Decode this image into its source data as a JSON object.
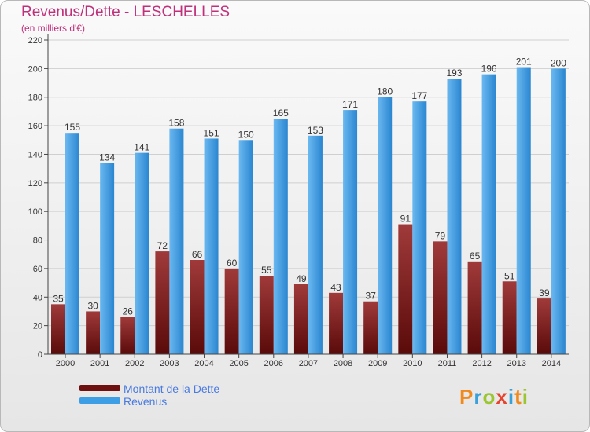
{
  "title": "Revenus/Dette - LESCHELLES",
  "subtitle": "(en milliers d'€)",
  "chart_data": {
    "type": "bar",
    "title": "Revenus/Dette - LESCHELLES",
    "subtitle": "(en milliers d'€)",
    "categories": [
      "2000",
      "2001",
      "2002",
      "2003",
      "2004",
      "2005",
      "2006",
      "2007",
      "2008",
      "2009",
      "2010",
      "2011",
      "2012",
      "2013",
      "2014"
    ],
    "series": [
      {
        "name": "Montant de la Dette",
        "color": "#7a1a1a",
        "values": [
          35,
          30,
          26,
          72,
          66,
          60,
          55,
          49,
          43,
          37,
          91,
          79,
          65,
          51,
          39
        ]
      },
      {
        "name": "Revenus",
        "color": "#3d9ee6",
        "values": [
          155,
          134,
          141,
          158,
          151,
          150,
          165,
          153,
          171,
          180,
          177,
          193,
          196,
          201,
          200
        ]
      }
    ],
    "ylim": [
      0,
      220
    ],
    "yticks": [
      0,
      20,
      40,
      60,
      80,
      100,
      120,
      140,
      160,
      180,
      200,
      220
    ],
    "grid": true,
    "legend_position": "bottom-left"
  },
  "legend": [
    {
      "label": "Montant de la Dette",
      "color": "#6e1010"
    },
    {
      "label": "Revenus",
      "color": "#3d9ee6"
    }
  ],
  "logo": {
    "text": "Proxiti",
    "letters": [
      "P",
      "r",
      "o",
      "x",
      "i",
      "t",
      "i"
    ],
    "colors": [
      "#f08a1c",
      "#3aa0d8",
      "#9bc531",
      "#e8432f",
      "#3aa0d8",
      "#f08a1c",
      "#9bc531"
    ]
  }
}
